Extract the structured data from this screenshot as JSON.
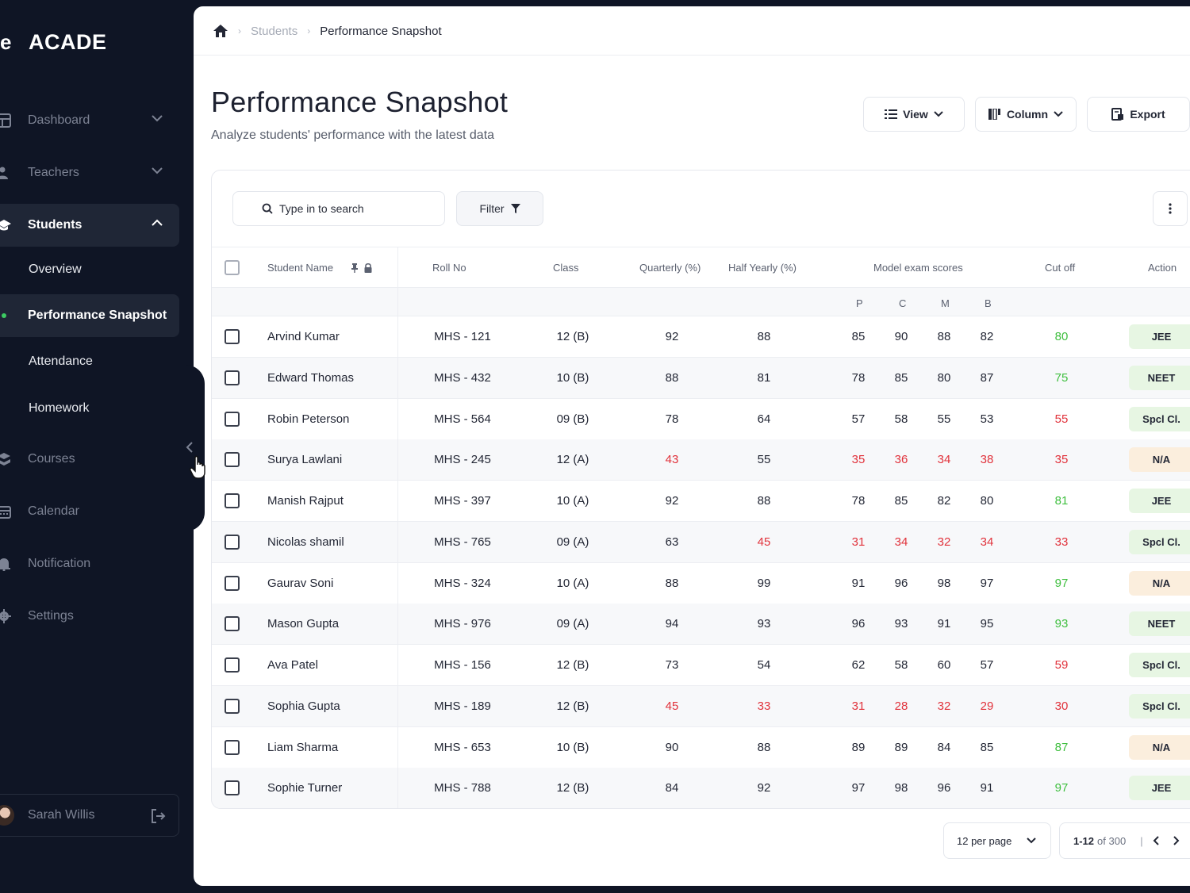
{
  "brand": {
    "mark": "e",
    "name": "ACADE"
  },
  "nav": {
    "dashboard": "Dashboard",
    "teachers": "Teachers",
    "students": "Students",
    "students_sub": [
      "Overview",
      "Performance Snapshot",
      "Attendance",
      "Homework"
    ],
    "courses": "Courses",
    "calendar": "Calendar",
    "notification": "Notification",
    "settings": "Settings"
  },
  "user": {
    "name": "Sarah Willis"
  },
  "breadcrumb": {
    "students": "Students",
    "current": "Performance Snapshot"
  },
  "page": {
    "title": "Performance Snapshot",
    "subtitle": "Analyze students' performance with the latest data"
  },
  "toolbar": {
    "view": "View",
    "column": "Column",
    "export": "Export"
  },
  "search": {
    "placeholder": "Type in to search"
  },
  "filter": {
    "label": "Filter"
  },
  "table": {
    "headers": {
      "name": "Student Name",
      "roll": "Roll No",
      "class": "Class",
      "quarterly": "Quarterly (%)",
      "half_yearly": "Half Yearly (%)",
      "model": "Model exam scores",
      "cutoff": "Cut off",
      "action": "Action"
    },
    "subheaders": {
      "p": "P",
      "c": "C",
      "m": "M",
      "b": "B"
    },
    "rows": [
      {
        "name": "Arvind Kumar",
        "roll": "MHS - 121",
        "class": "12 (B)",
        "q": "92",
        "h": "88",
        "p": "85",
        "c": "90",
        "m": "88",
        "b": "82",
        "cutoff": "80",
        "action": "JEE"
      },
      {
        "name": "Edward Thomas",
        "roll": "MHS - 432",
        "class": "10 (B)",
        "q": "88",
        "h": "81",
        "p": "78",
        "c": "85",
        "m": "80",
        "b": "87",
        "cutoff": "75",
        "action": "NEET"
      },
      {
        "name": "Robin Peterson",
        "roll": "MHS - 564",
        "class": "09 (B)",
        "q": "78",
        "h": "64",
        "p": "57",
        "c": "58",
        "m": "55",
        "b": "53",
        "cutoff": "55",
        "action": "Spcl Cl."
      },
      {
        "name": "Surya Lawlani",
        "roll": "MHS - 245",
        "class": "12 (A)",
        "q": "43",
        "h": "55",
        "p": "35",
        "c": "36",
        "m": "34",
        "b": "38",
        "cutoff": "35",
        "action": "N/A"
      },
      {
        "name": "Manish Rajput",
        "roll": "MHS - 397",
        "class": "10 (A)",
        "q": "92",
        "h": "88",
        "p": "78",
        "c": "85",
        "m": "82",
        "b": "80",
        "cutoff": "81",
        "action": "JEE"
      },
      {
        "name": "Nicolas shamil",
        "roll": "MHS - 765",
        "class": "09 (A)",
        "q": "63",
        "h": "45",
        "p": "31",
        "c": "34",
        "m": "32",
        "b": "34",
        "cutoff": "33",
        "action": "Spcl Cl."
      },
      {
        "name": "Gaurav Soni",
        "roll": "MHS - 324",
        "class": "10 (A)",
        "q": "88",
        "h": "99",
        "p": "91",
        "c": "96",
        "m": "98",
        "b": "97",
        "cutoff": "97",
        "action": "N/A"
      },
      {
        "name": "Mason Gupta",
        "roll": "MHS - 976",
        "class": "09 (A)",
        "q": "94",
        "h": "93",
        "p": "96",
        "c": "93",
        "m": "91",
        "b": "95",
        "cutoff": "93",
        "action": "NEET"
      },
      {
        "name": "Ava Patel",
        "roll": "MHS - 156",
        "class": "12 (B)",
        "q": "73",
        "h": "54",
        "p": "62",
        "c": "58",
        "m": "60",
        "b": "57",
        "cutoff": "59",
        "action": "Spcl Cl."
      },
      {
        "name": "Sophia Gupta",
        "roll": "MHS - 189",
        "class": "12 (B)",
        "q": "45",
        "h": "33",
        "p": "31",
        "c": "28",
        "m": "32",
        "b": "29",
        "cutoff": "30",
        "action": "Spcl Cl."
      },
      {
        "name": "Liam Sharma",
        "roll": "MHS - 653",
        "class": "10 (B)",
        "q": "90",
        "h": "88",
        "p": "89",
        "c": "89",
        "m": "84",
        "b": "85",
        "cutoff": "87",
        "action": "N/A"
      },
      {
        "name": "Sophie Turner",
        "roll": "MHS - 788",
        "class": "12 (B)",
        "q": "84",
        "h": "92",
        "p": "97",
        "c": "98",
        "m": "96",
        "b": "91",
        "cutoff": "97",
        "action": "JEE"
      }
    ]
  },
  "pagination": {
    "per_page": "12 per page",
    "range": "1-12",
    "of_total": "of 300"
  },
  "colors": {
    "red": "#e1323b",
    "green": "#3fbf3f",
    "sidebar_bg": "#0f1525",
    "active_bg": "#1f2636"
  }
}
